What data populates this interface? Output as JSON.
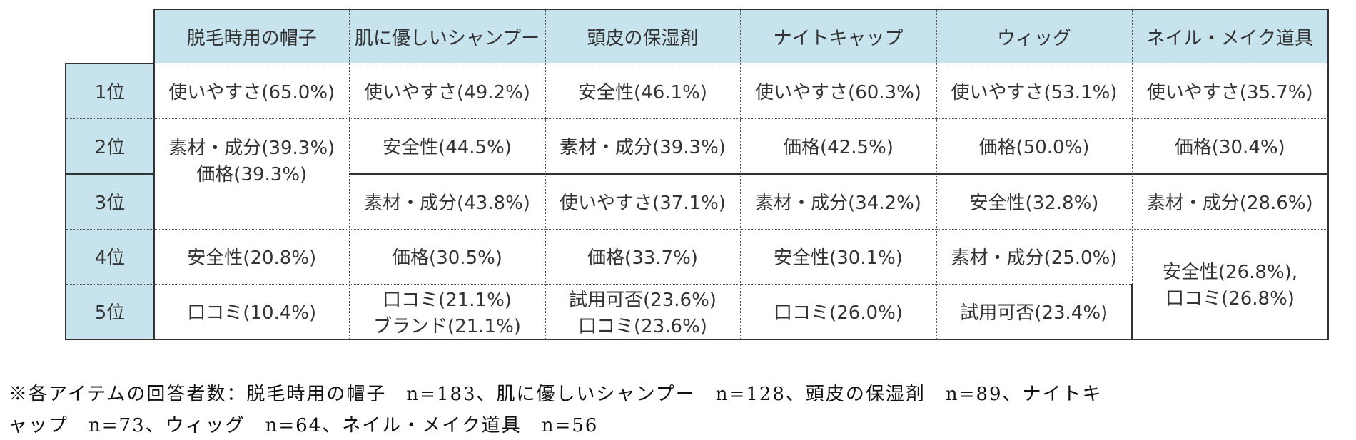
{
  "table": {
    "headers": [
      "脱毛時用の帽子",
      "肌に優しいシャンプー",
      "頭皮の保湿剤",
      "ナイトキャップ",
      "ウィッグ",
      "ネイル・メイク道具"
    ],
    "ranks": [
      "1位",
      "2位",
      "3位",
      "4位",
      "5位"
    ],
    "row1": [
      "使いやすさ(65.0%)",
      "使いやすさ(49.2%)",
      "安全性(46.1%)",
      "使いやすさ(60.3%)",
      "使いやすさ(53.1%)",
      "使いやすさ(35.7%)"
    ],
    "row2": [
      "素材・成分(39.3%)",
      "価格(39.3%)",
      "安全性(44.5%)",
      "素材・成分(39.3%)",
      "価格(42.5%)",
      "価格(50.0%)",
      "価格(30.4%)"
    ],
    "row3": [
      "素材・成分(43.8%)",
      "使いやすさ(37.1%)",
      "素材・成分(34.2%)",
      "安全性(32.8%)",
      "素材・成分(28.6%)"
    ],
    "row4": [
      "安全性(20.8%)",
      "価格(30.5%)",
      "価格(33.7%)",
      "安全性(30.1%)",
      "素材・成分(25.0%)",
      "安全性(26.8%),",
      "口コミ(26.8%)"
    ],
    "row5": [
      "口コミ(10.4%)",
      "口コミ(21.1%)",
      "ブランド(21.1%)",
      "試用可否(23.6%)",
      "口コミ(23.6%)",
      "口コミ(26.0%)",
      "試用可否(23.4%)"
    ]
  },
  "footnote": {
    "line1": "※各アイテムの回答者数：脱毛時用の帽子　n=183、肌に優しいシャンプー　n=128、頭皮の保湿剤　n=89、ナイトキ",
    "line2": "ャップ　n=73、ウィッグ　n=64、ネイル・メイク道具　n=56"
  },
  "colors": {
    "header_bg": "#c7e4ee"
  }
}
